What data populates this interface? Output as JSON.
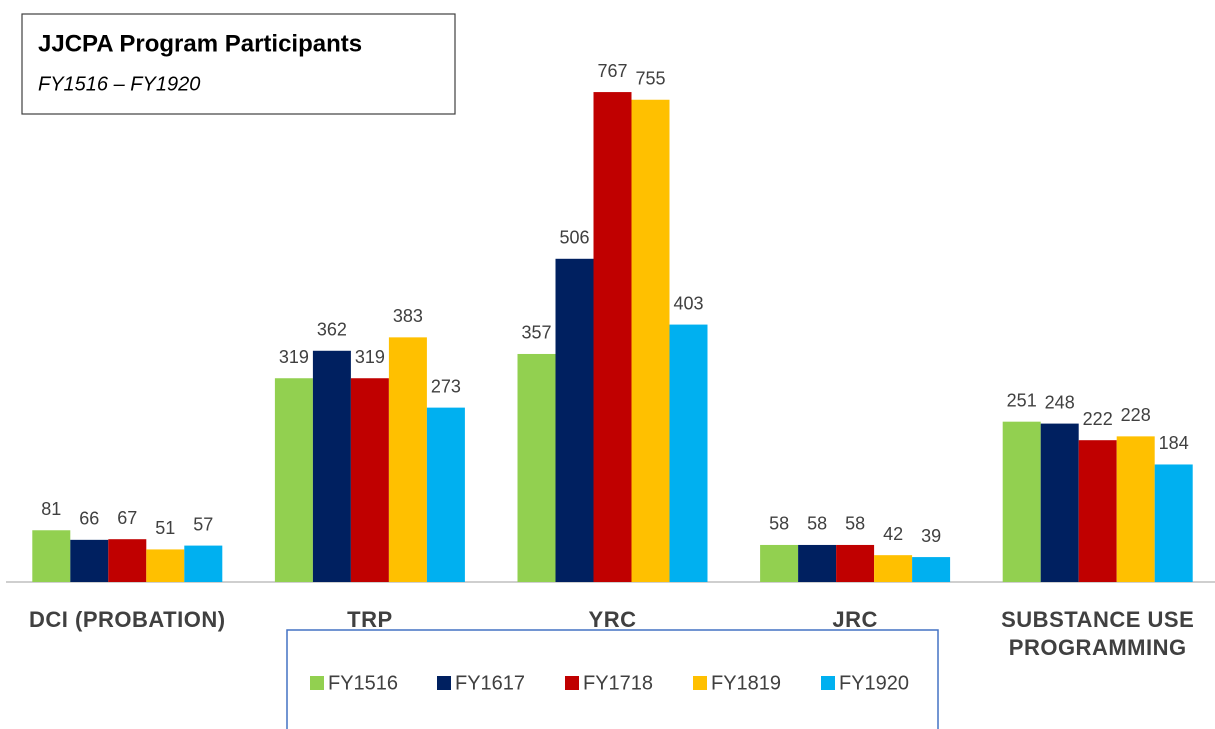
{
  "chart_data": {
    "type": "bar",
    "title": "JJCPA Program Participants",
    "subtitle": "FY1516 – FY1920",
    "categories": [
      "DCI (PROBATION)",
      "TRP",
      "YRC",
      "JRC",
      "SUBSTANCE USE PROGRAMMING"
    ],
    "series": [
      {
        "name": "FY1516",
        "color": "#92d050",
        "values": [
          81,
          319,
          357,
          58,
          251
        ]
      },
      {
        "name": "FY1617",
        "color": "#002060",
        "values": [
          66,
          362,
          506,
          58,
          248
        ]
      },
      {
        "name": "FY1718",
        "color": "#c00000",
        "values": [
          67,
          319,
          767,
          58,
          222
        ]
      },
      {
        "name": "FY1819",
        "color": "#ffc000",
        "values": [
          51,
          383,
          755,
          42,
          228
        ]
      },
      {
        "name": "FY1920",
        "color": "#00b0f0",
        "values": [
          57,
          273,
          403,
          39,
          184
        ]
      }
    ],
    "ylim": [
      0,
      800
    ],
    "legend": "bottom"
  }
}
